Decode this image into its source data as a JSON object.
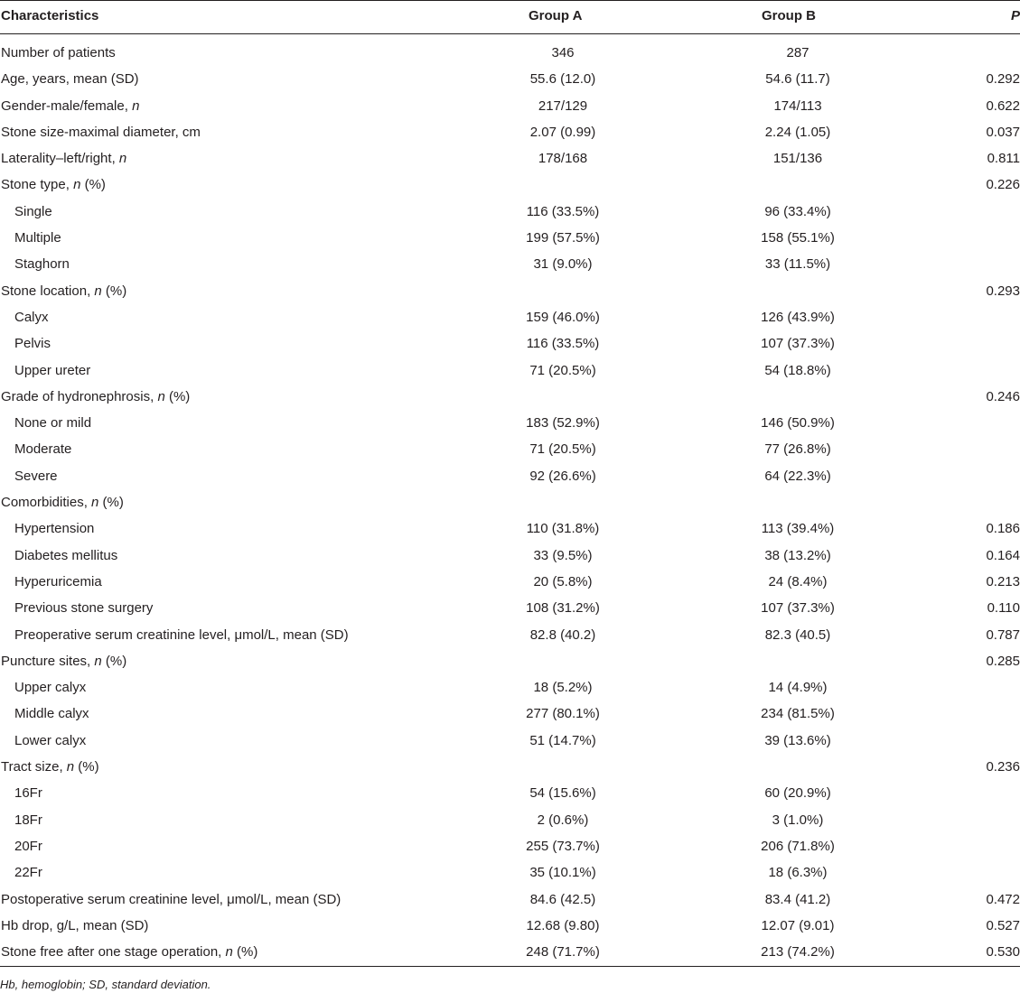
{
  "table": {
    "columns": {
      "characteristics": "Characteristics",
      "group_a": "Group A",
      "group_b": "Group B",
      "p": "P"
    },
    "rows": [
      {
        "label": "Number of patients",
        "label_it": "",
        "label_after": "",
        "a": "346",
        "b": "287",
        "p": "",
        "sub": false
      },
      {
        "label": "Age, years, mean (SD)",
        "label_it": "",
        "label_after": "",
        "a": "55.6 (12.0)",
        "b": "54.6 (11.7)",
        "p": "0.292",
        "sub": false
      },
      {
        "label": "Gender-male/female, ",
        "label_it": "n",
        "label_after": "",
        "a": "217/129",
        "b": "174/113",
        "p": "0.622",
        "sub": false
      },
      {
        "label": "Stone size-maximal diameter, cm",
        "label_it": "",
        "label_after": "",
        "a": "2.07 (0.99)",
        "b": "2.24 (1.05)",
        "p": "0.037",
        "sub": false
      },
      {
        "label": "Laterality–left/right, ",
        "label_it": "n",
        "label_after": "",
        "a": "178/168",
        "b": "151/136",
        "p": "0.811",
        "sub": false
      },
      {
        "label": "Stone type, ",
        "label_it": "n",
        "label_after": " (%)",
        "a": "",
        "b": "",
        "p": "0.226",
        "sub": false
      },
      {
        "label": "Single",
        "label_it": "",
        "label_after": "",
        "a": "116 (33.5%)",
        "b": "96 (33.4%)",
        "p": "",
        "sub": true
      },
      {
        "label": "Multiple",
        "label_it": "",
        "label_after": "",
        "a": "199 (57.5%)",
        "b": "158 (55.1%)",
        "p": "",
        "sub": true
      },
      {
        "label": "Staghorn",
        "label_it": "",
        "label_after": "",
        "a": "31 (9.0%)",
        "b": "33 (11.5%)",
        "p": "",
        "sub": true
      },
      {
        "label": "Stone location, ",
        "label_it": "n",
        "label_after": " (%)",
        "a": "",
        "b": "",
        "p": "0.293",
        "sub": false
      },
      {
        "label": "Calyx",
        "label_it": "",
        "label_after": "",
        "a": "159 (46.0%)",
        "b": "126 (43.9%)",
        "p": "",
        "sub": true
      },
      {
        "label": "Pelvis",
        "label_it": "",
        "label_after": "",
        "a": "116 (33.5%)",
        "b": "107 (37.3%)",
        "p": "",
        "sub": true
      },
      {
        "label": "Upper ureter",
        "label_it": "",
        "label_after": "",
        "a": "71 (20.5%)",
        "b": "54 (18.8%)",
        "p": "",
        "sub": true
      },
      {
        "label": "Grade of hydronephrosis, ",
        "label_it": "n",
        "label_after": " (%)",
        "a": "",
        "b": "",
        "p": "0.246",
        "sub": false
      },
      {
        "label": "None or mild",
        "label_it": "",
        "label_after": "",
        "a": "183 (52.9%)",
        "b": "146 (50.9%)",
        "p": "",
        "sub": true
      },
      {
        "label": "Moderate",
        "label_it": "",
        "label_after": "",
        "a": "71 (20.5%)",
        "b": "77 (26.8%)",
        "p": "",
        "sub": true
      },
      {
        "label": "Severe",
        "label_it": "",
        "label_after": "",
        "a": "92 (26.6%)",
        "b": "64 (22.3%)",
        "p": "",
        "sub": true
      },
      {
        "label": "Comorbidities, ",
        "label_it": "n",
        "label_after": " (%)",
        "a": "",
        "b": "",
        "p": "",
        "sub": false
      },
      {
        "label": "Hypertension",
        "label_it": "",
        "label_after": "",
        "a": "110 (31.8%)",
        "b": "113 (39.4%)",
        "p": "0.186",
        "sub": true
      },
      {
        "label": "Diabetes mellitus",
        "label_it": "",
        "label_after": "",
        "a": "33 (9.5%)",
        "b": "38 (13.2%)",
        "p": "0.164",
        "sub": true
      },
      {
        "label": "Hyperuricemia",
        "label_it": "",
        "label_after": "",
        "a": "20 (5.8%)",
        "b": "24 (8.4%)",
        "p": "0.213",
        "sub": true
      },
      {
        "label": "Previous stone surgery",
        "label_it": "",
        "label_after": "",
        "a": "108 (31.2%)",
        "b": "107 (37.3%)",
        "p": "0.110",
        "sub": true
      },
      {
        "label": "Preoperative serum creatinine level, μmol/L, mean (SD)",
        "label_it": "",
        "label_after": "",
        "a": "82.8 (40.2)",
        "b": "82.3 (40.5)",
        "p": "0.787",
        "sub": true
      },
      {
        "label": "Puncture sites, ",
        "label_it": "n",
        "label_after": " (%)",
        "a": "",
        "b": "",
        "p": "0.285",
        "sub": false
      },
      {
        "label": "Upper calyx",
        "label_it": "",
        "label_after": "",
        "a": "18 (5.2%)",
        "b": "14 (4.9%)",
        "p": "",
        "sub": true
      },
      {
        "label": "Middle calyx",
        "label_it": "",
        "label_after": "",
        "a": "277 (80.1%)",
        "b": "234 (81.5%)",
        "p": "",
        "sub": true
      },
      {
        "label": "Lower calyx",
        "label_it": "",
        "label_after": "",
        "a": "51 (14.7%)",
        "b": "39 (13.6%)",
        "p": "",
        "sub": true
      },
      {
        "label": "Tract size, ",
        "label_it": "n",
        "label_after": " (%)",
        "a": "",
        "b": "",
        "p": "0.236",
        "sub": false
      },
      {
        "label": "16Fr",
        "label_it": "",
        "label_after": "",
        "a": "54 (15.6%)",
        "b": "60 (20.9%)",
        "p": "",
        "sub": true
      },
      {
        "label": "18Fr",
        "label_it": "",
        "label_after": "",
        "a": "2 (0.6%)",
        "b": "3 (1.0%)",
        "p": "",
        "sub": true
      },
      {
        "label": "20Fr",
        "label_it": "",
        "label_after": "",
        "a": "255 (73.7%)",
        "b": "206 (71.8%)",
        "p": "",
        "sub": true
      },
      {
        "label": "22Fr",
        "label_it": "",
        "label_after": "",
        "a": "35 (10.1%)",
        "b": "18 (6.3%)",
        "p": "",
        "sub": true
      },
      {
        "label": "Postoperative serum creatinine level, μmol/L, mean (SD)",
        "label_it": "",
        "label_after": "",
        "a": "84.6 (42.5)",
        "b": "83.4 (41.2)",
        "p": "0.472",
        "sub": false
      },
      {
        "label": "Hb drop, g/L, mean (SD)",
        "label_it": "",
        "label_after": "",
        "a": "12.68 (9.80)",
        "b": "12.07 (9.01)",
        "p": "0.527",
        "sub": false
      },
      {
        "label": "Stone free after one stage operation, ",
        "label_it": "n",
        "label_after": " (%)",
        "a": "248 (71.7%)",
        "b": "213 (74.2%)",
        "p": "0.530",
        "sub": false
      }
    ],
    "footnote": "Hb, hemoglobin; SD, standard deviation."
  }
}
